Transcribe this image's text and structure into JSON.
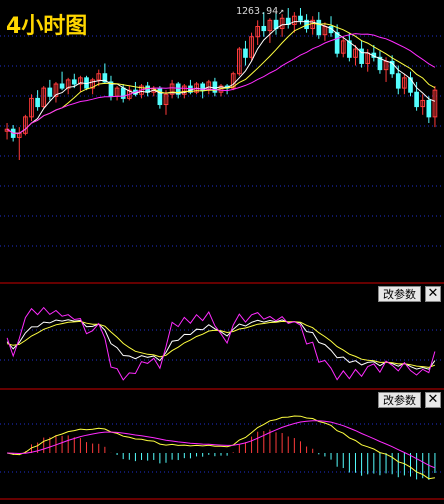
{
  "title": "4小时图",
  "price_pane": {
    "peak_label": "1263.94",
    "candles": [
      [
        1204,
        1208,
        1200,
        1205
      ],
      [
        1205,
        1207,
        1199,
        1201
      ],
      [
        1201,
        1206,
        1190,
        1203
      ],
      [
        1203,
        1212,
        1202,
        1211
      ],
      [
        1211,
        1222,
        1209,
        1220
      ],
      [
        1220,
        1224,
        1214,
        1216
      ],
      [
        1216,
        1226,
        1215,
        1225
      ],
      [
        1225,
        1229,
        1219,
        1221
      ],
      [
        1221,
        1228,
        1218,
        1227
      ],
      [
        1227,
        1233,
        1224,
        1225
      ],
      [
        1225,
        1230,
        1222,
        1229
      ],
      [
        1229,
        1232,
        1225,
        1227
      ],
      [
        1227,
        1231,
        1223,
        1230
      ],
      [
        1230,
        1231,
        1224,
        1225
      ],
      [
        1225,
        1230,
        1222,
        1229
      ],
      [
        1229,
        1234,
        1226,
        1232
      ],
      [
        1232,
        1237,
        1227,
        1228
      ],
      [
        1228,
        1231,
        1219,
        1221
      ],
      [
        1221,
        1226,
        1219,
        1225
      ],
      [
        1225,
        1227,
        1218,
        1220
      ],
      [
        1220,
        1226,
        1219,
        1224
      ],
      [
        1224,
        1228,
        1221,
        1222
      ],
      [
        1222,
        1227,
        1220,
        1226
      ],
      [
        1226,
        1228,
        1221,
        1223
      ],
      [
        1223,
        1226,
        1221,
        1225
      ],
      [
        1225,
        1226,
        1215,
        1217
      ],
      [
        1217,
        1224,
        1212,
        1222
      ],
      [
        1222,
        1229,
        1220,
        1227
      ],
      [
        1227,
        1228,
        1220,
        1222
      ],
      [
        1222,
        1227,
        1220,
        1226
      ],
      [
        1226,
        1229,
        1222,
        1223
      ],
      [
        1223,
        1228,
        1222,
        1227
      ],
      [
        1227,
        1228,
        1220,
        1224
      ],
      [
        1224,
        1229,
        1222,
        1228
      ],
      [
        1228,
        1230,
        1221,
        1223
      ],
      [
        1223,
        1227,
        1221,
        1226
      ],
      [
        1226,
        1227,
        1222,
        1225
      ],
      [
        1225,
        1233,
        1224,
        1232
      ],
      [
        1232,
        1245,
        1231,
        1244
      ],
      [
        1244,
        1248,
        1236,
        1240
      ],
      [
        1240,
        1252,
        1238,
        1250
      ],
      [
        1250,
        1258,
        1246,
        1255
      ],
      [
        1255,
        1262,
        1250,
        1253
      ],
      [
        1253,
        1259,
        1247,
        1258
      ],
      [
        1258,
        1262,
        1251,
        1254
      ],
      [
        1254,
        1261,
        1250,
        1259
      ],
      [
        1259,
        1264,
        1254,
        1256
      ],
      [
        1256,
        1262,
        1252,
        1260
      ],
      [
        1260,
        1264,
        1256,
        1258
      ],
      [
        1258,
        1261,
        1252,
        1254
      ],
      [
        1254,
        1260,
        1251,
        1258
      ],
      [
        1258,
        1262,
        1249,
        1251
      ],
      [
        1251,
        1257,
        1248,
        1255
      ],
      [
        1255,
        1260,
        1250,
        1252
      ],
      [
        1252,
        1256,
        1240,
        1242
      ],
      [
        1242,
        1250,
        1240,
        1248
      ],
      [
        1248,
        1252,
        1238,
        1240
      ],
      [
        1240,
        1246,
        1236,
        1244
      ],
      [
        1244,
        1248,
        1235,
        1237
      ],
      [
        1237,
        1244,
        1233,
        1242
      ],
      [
        1242,
        1246,
        1238,
        1240
      ],
      [
        1240,
        1243,
        1232,
        1234
      ],
      [
        1234,
        1240,
        1228,
        1238
      ],
      [
        1238,
        1241,
        1230,
        1232
      ],
      [
        1232,
        1236,
        1222,
        1225
      ],
      [
        1225,
        1232,
        1222,
        1230
      ],
      [
        1230,
        1233,
        1221,
        1223
      ],
      [
        1223,
        1228,
        1214,
        1216
      ],
      [
        1216,
        1222,
        1212,
        1219
      ],
      [
        1219,
        1221,
        1208,
        1211
      ],
      [
        1211,
        1226,
        1206,
        1224
      ]
    ]
  },
  "kdj_pane": {
    "param_button": "改参数",
    "close_button": "✕"
  },
  "macd_pane": {
    "param_button": "改参数",
    "close_button": "✕"
  },
  "colors": {
    "up": "#ff3b3b",
    "down": "#54ffff",
    "ma_white": "#ffffff",
    "ma_yellow": "#ffff40",
    "ma_magenta": "#ff2bff",
    "grid": "#2a3cff",
    "separator": "#cc0000"
  }
}
